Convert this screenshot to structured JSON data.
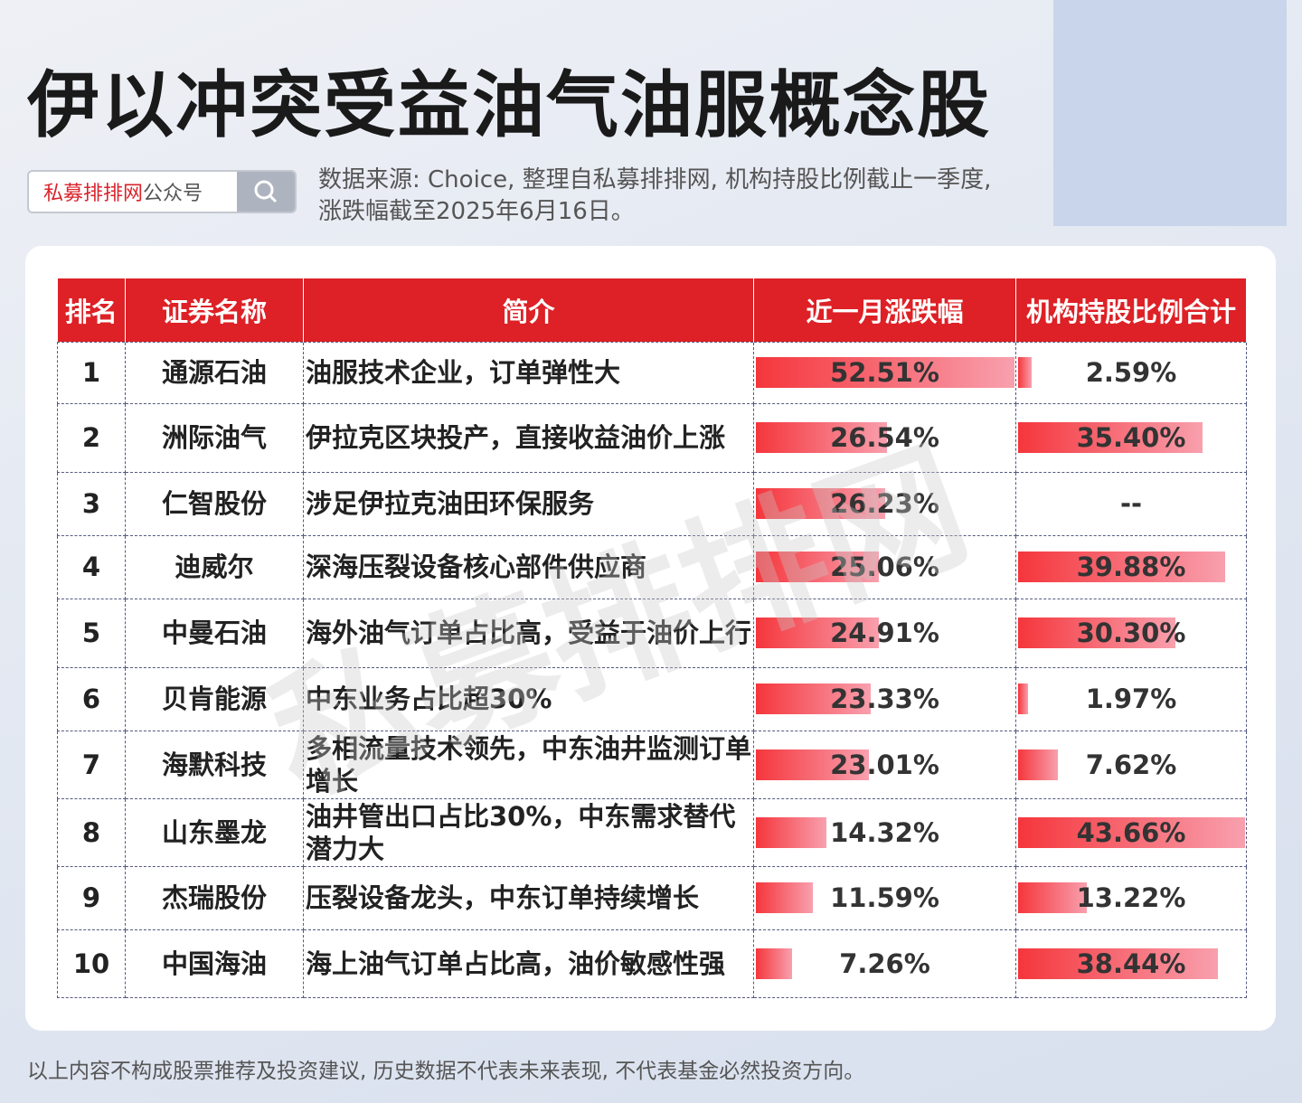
{
  "title": "伊以冲突受益油气油服概念股",
  "search": {
    "brand": "私募排排网",
    "suffix": "公众号",
    "icon": "search-icon"
  },
  "source_line1": "数据来源: Choice, 整理自私募排排网, 机构持股比例截止一季度,",
  "source_line2": "涨跌幅截至2025年6月16日。",
  "watermark": "私募排排网",
  "headers": [
    "排名",
    "证券名称",
    "简介",
    "近一月涨跌幅",
    "机构持股比例合计"
  ],
  "rows": [
    {
      "rank": "1",
      "name": "通源石油",
      "intro": "油服技术企业，订单弹性大",
      "change": "52.51%",
      "change_v": 52.51,
      "inst": "2.59%",
      "inst_v": 2.59
    },
    {
      "rank": "2",
      "name": "洲际油气",
      "intro": "伊拉克区块投产，直接收益油价上涨",
      "change": "26.54%",
      "change_v": 26.54,
      "inst": "35.40%",
      "inst_v": 35.4
    },
    {
      "rank": "3",
      "name": "仁智股份",
      "intro": "涉足伊拉克油田环保服务",
      "change": "26.23%",
      "change_v": 26.23,
      "inst": "--",
      "inst_v": 0
    },
    {
      "rank": "4",
      "name": "迪威尔",
      "intro": "深海压裂设备核心部件供应商",
      "change": "25.06%",
      "change_v": 25.06,
      "inst": "39.88%",
      "inst_v": 39.88
    },
    {
      "rank": "5",
      "name": "中曼石油",
      "intro": "海外油气订单占比高，受益于油价上行",
      "change": "24.91%",
      "change_v": 24.91,
      "inst": "30.30%",
      "inst_v": 30.3
    },
    {
      "rank": "6",
      "name": "贝肯能源",
      "intro": "中东业务占比超30%",
      "change": "23.33%",
      "change_v": 23.33,
      "inst": "1.97%",
      "inst_v": 1.97
    },
    {
      "rank": "7",
      "name": "海默科技",
      "intro": "多相流量技术领先，中东油井监测订单增长",
      "change": "23.01%",
      "change_v": 23.01,
      "inst": "7.62%",
      "inst_v": 7.62
    },
    {
      "rank": "8",
      "name": "山东墨龙",
      "intro": "油井管出口占比30%，中东需求替代潜力大",
      "change": "14.32%",
      "change_v": 14.32,
      "inst": "43.66%",
      "inst_v": 43.66
    },
    {
      "rank": "9",
      "name": "杰瑞股份",
      "intro": "压裂设备龙头，中东订单持续增长",
      "change": "11.59%",
      "change_v": 11.59,
      "inst": "13.22%",
      "inst_v": 13.22
    },
    {
      "rank": "10",
      "name": "中国海油",
      "intro": "海上油气订单占比高，油价敏感性强",
      "change": "7.26%",
      "change_v": 7.26,
      "inst": "38.44%",
      "inst_v": 38.44
    }
  ],
  "footer": "以上内容不构成股票推荐及投资建议, 历史数据不代表未来表现, 不代表基金必然投资方向。",
  "colors": {
    "header": "#dd2126",
    "bar_start": "#f5363c",
    "bar_end": "#f8a0ae"
  }
}
